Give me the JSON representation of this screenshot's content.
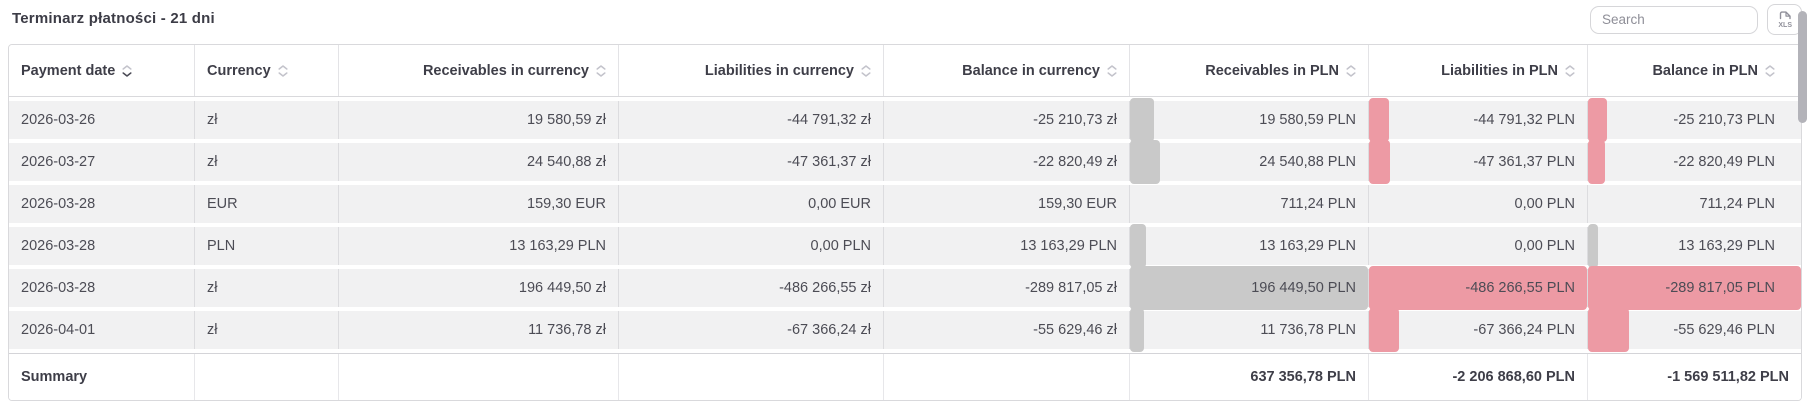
{
  "header": {
    "title": "Terminarz płatności - 21 dni",
    "search_placeholder": "Search",
    "export_label": "XLS"
  },
  "colors": {
    "bar_positive": "#c9c9c9",
    "bar_negative": "#ed9aa4",
    "row_background": "#f1f1f2"
  },
  "table": {
    "columns": [
      {
        "key": "payment_date",
        "label": "Payment date",
        "align": "left",
        "sort_active": "down"
      },
      {
        "key": "currency",
        "label": "Currency",
        "align": "left",
        "sort_active": "none"
      },
      {
        "key": "receivables_currency",
        "label": "Receivables in currency",
        "align": "right",
        "sort_active": "none"
      },
      {
        "key": "liabilities_currency",
        "label": "Liabilities in currency",
        "align": "right",
        "sort_active": "none"
      },
      {
        "key": "balance_currency",
        "label": "Balance in currency",
        "align": "right",
        "sort_active": "none"
      },
      {
        "key": "receivables_pln",
        "label": "Receivables in PLN",
        "align": "right",
        "sort_active": "none",
        "value_key": "receivables_pln_value"
      },
      {
        "key": "liabilities_pln",
        "label": "Liabilities in PLN",
        "align": "right",
        "sort_active": "none",
        "value_key": "liabilities_pln_value"
      },
      {
        "key": "balance_pln",
        "label": "Balance in PLN",
        "align": "right",
        "sort_active": "none",
        "value_key": "balance_pln_value"
      }
    ],
    "rows": [
      {
        "payment_date": "2026-03-26",
        "currency": "zł",
        "receivables_currency": "19 580,59 zł",
        "liabilities_currency": "-44 791,32 zł",
        "balance_currency": "-25 210,73 zł",
        "receivables_pln": "19 580,59 PLN",
        "liabilities_pln": "-44 791,32 PLN",
        "balance_pln": "-25 210,73 PLN",
        "receivables_pln_value": 19580.59,
        "liabilities_pln_value": -44791.32,
        "balance_pln_value": -25210.73
      },
      {
        "payment_date": "2026-03-27",
        "currency": "zł",
        "receivables_currency": "24 540,88 zł",
        "liabilities_currency": "-47 361,37 zł",
        "balance_currency": "-22 820,49 zł",
        "receivables_pln": "24 540,88 PLN",
        "liabilities_pln": "-47 361,37 PLN",
        "balance_pln": "-22 820,49 PLN",
        "receivables_pln_value": 24540.88,
        "liabilities_pln_value": -47361.37,
        "balance_pln_value": -22820.49
      },
      {
        "payment_date": "2026-03-28",
        "currency": "EUR",
        "receivables_currency": "159,30 EUR",
        "liabilities_currency": "0,00 EUR",
        "balance_currency": "159,30 EUR",
        "receivables_pln": "711,24 PLN",
        "liabilities_pln": "0,00 PLN",
        "balance_pln": "711,24 PLN",
        "receivables_pln_value": 711.24,
        "liabilities_pln_value": 0,
        "balance_pln_value": 711.24
      },
      {
        "payment_date": "2026-03-28",
        "currency": "PLN",
        "receivables_currency": "13 163,29 PLN",
        "liabilities_currency": "0,00 PLN",
        "balance_currency": "13 163,29 PLN",
        "receivables_pln": "13 163,29 PLN",
        "liabilities_pln": "0,00 PLN",
        "balance_pln": "13 163,29 PLN",
        "receivables_pln_value": 13163.29,
        "liabilities_pln_value": 0,
        "balance_pln_value": 13163.29
      },
      {
        "payment_date": "2026-03-28",
        "currency": "zł",
        "receivables_currency": "196 449,50 zł",
        "liabilities_currency": "-486 266,55 zł",
        "balance_currency": "-289 817,05 zł",
        "receivables_pln": "196 449,50 PLN",
        "liabilities_pln": "-486 266,55 PLN",
        "balance_pln": "-289 817,05 PLN",
        "receivables_pln_value": 196449.5,
        "liabilities_pln_value": -486266.55,
        "balance_pln_value": -289817.05
      },
      {
        "payment_date": "2026-04-01",
        "currency": "zł",
        "receivables_currency": "11 736,78 zł",
        "liabilities_currency": "-67 366,24 zł",
        "balance_currency": "-55 629,46 zł",
        "receivables_pln": "11 736,78 PLN",
        "liabilities_pln": "-67 366,24 PLN",
        "balance_pln": "-55 629,46 PLN",
        "receivables_pln_value": 11736.78,
        "liabilities_pln_value": -67366.24,
        "balance_pln_value": -55629.46
      }
    ],
    "summary": {
      "label": "Summary",
      "receivables_pln": "637 356,78 PLN",
      "liabilities_pln": "-2 206 868,60 PLN",
      "balance_pln": "-1 569 511,82 PLN"
    }
  }
}
